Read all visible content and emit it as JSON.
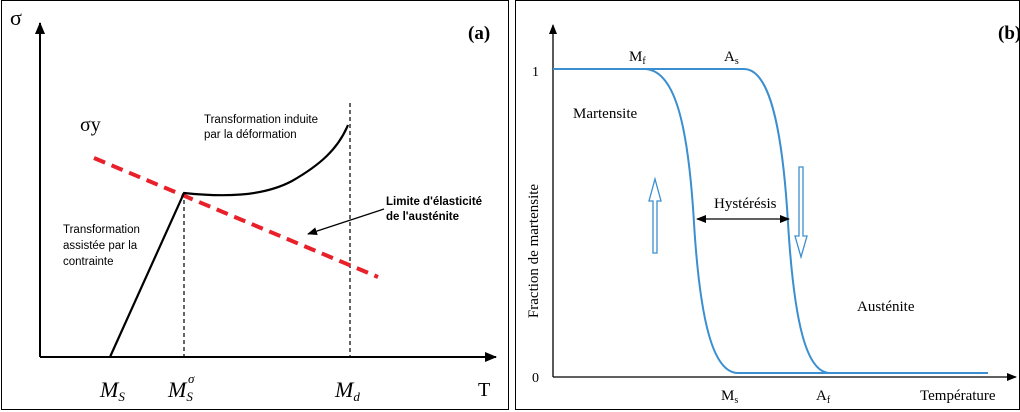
{
  "panel_a": {
    "label": "(a)",
    "y_axis_label": "σ",
    "x_axis_label": "T",
    "sigma_y_label": "σy",
    "annotation_top": [
      "Transformation induite",
      "par la déformation"
    ],
    "annotation_left": [
      "Transformation",
      "assistée par la",
      "contrainte"
    ],
    "annotation_right": [
      "Limite d'élasticité",
      "de l'austénite"
    ],
    "x_ticks": {
      "ms_main": "M",
      "ms_sub": "S",
      "mss_main": "M",
      "mss_sub": "S",
      "mss_sup": "σ",
      "md_main": "M",
      "md_sub": "d"
    },
    "colors": {
      "curve": "#000000",
      "dashed_line": "#e8202a"
    }
  },
  "panel_b": {
    "label": "(b)",
    "y_axis_label": "Fraction de martensite",
    "x_axis_label": "Température",
    "y_tick_top": "1",
    "y_tick_bottom": "0",
    "top_labels": {
      "mf_main": "M",
      "mf_sub": "f",
      "as_main": "A",
      "as_sub": "s"
    },
    "bottom_labels": {
      "ms_main": "M",
      "ms_sub": "s",
      "af_main": "A",
      "af_sub": "f"
    },
    "phase_martensite": "Martensite",
    "phase_austenite": "Austénite",
    "hysteresis_label": "Hystérésis",
    "colors": {
      "curve": "#3b8fd0"
    }
  }
}
